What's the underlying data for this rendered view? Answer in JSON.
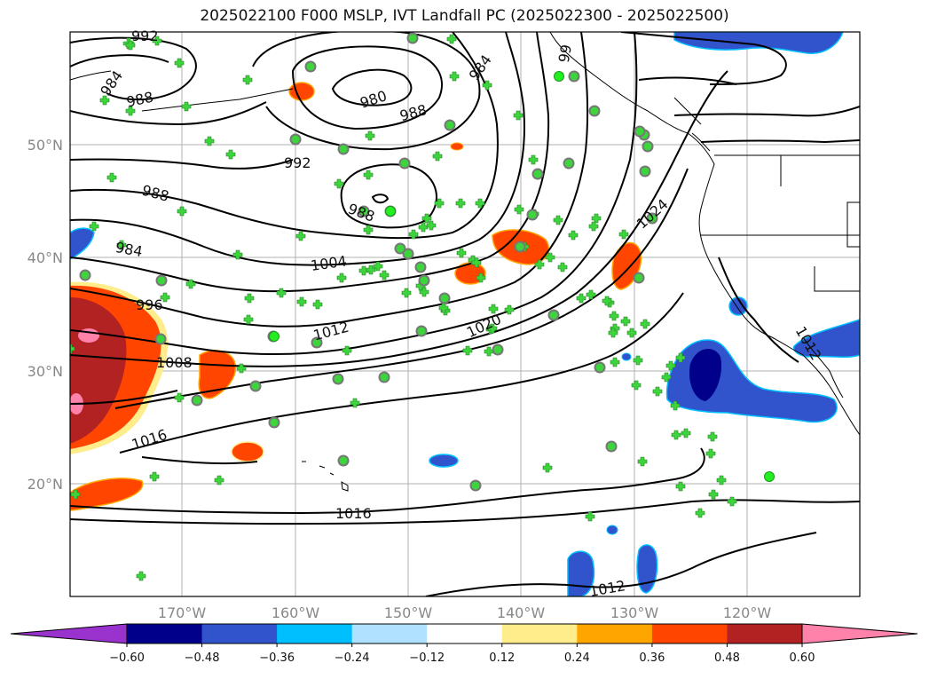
{
  "title": "2025022100 F000 MSLP, IVT Landfall PC (2025022300 - 2025022500)",
  "map": {
    "lon_labels": [
      "170°W",
      "160°W",
      "150°W",
      "140°W",
      "130°W",
      "120°W"
    ],
    "lat_labels": [
      "50°N",
      "40°N",
      "30°N",
      "20°N"
    ],
    "grid": true
  },
  "mslp_contour_labels": [
    {
      "id": "l992a",
      "text": "992"
    },
    {
      "id": "l984a",
      "text": "984"
    },
    {
      "id": "l988a",
      "text": "988"
    },
    {
      "id": "l980",
      "text": "980"
    },
    {
      "id": "l988b",
      "text": "988"
    },
    {
      "id": "l984b",
      "text": "984"
    },
    {
      "id": "l992b",
      "text": "992"
    },
    {
      "id": "l988c",
      "text": "988"
    },
    {
      "id": "l988d",
      "text": "988"
    },
    {
      "id": "l984c",
      "text": "984"
    },
    {
      "id": "l1004",
      "text": "1004"
    },
    {
      "id": "l1024",
      "text": "1024"
    },
    {
      "id": "l996",
      "text": "996"
    },
    {
      "id": "l1012a",
      "text": "1012"
    },
    {
      "id": "l1020",
      "text": "1020"
    },
    {
      "id": "l1008",
      "text": "1008"
    },
    {
      "id": "l1016a",
      "text": "1016"
    },
    {
      "id": "l1016b",
      "text": "1016"
    },
    {
      "id": "l1012b",
      "text": "1012"
    },
    {
      "id": "l1012c",
      "text": "1012"
    },
    {
      "id": "l99x",
      "text": "99"
    }
  ],
  "colorbar": {
    "ticks": [
      "−0.60",
      "−0.48",
      "−0.36",
      "−0.24",
      "−0.12",
      "0.12",
      "0.24",
      "0.36",
      "0.48",
      "0.60"
    ],
    "colors": [
      "#9a32cd",
      "#00008b",
      "#3153cc",
      "#00bfff",
      "#b0e2ff",
      "#ffffff",
      "#ffec8b",
      "#ffa500",
      "#ff4500",
      "#b22222",
      "#ff82ab"
    ],
    "extend": "both"
  }
}
